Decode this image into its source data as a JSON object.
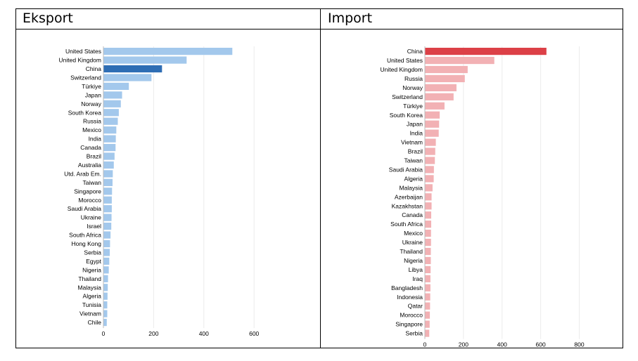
{
  "headers": {
    "left": "Eksport",
    "right": "Import"
  },
  "chart_data": [
    {
      "type": "bar",
      "orientation": "horizontal",
      "title": "",
      "xlabel": "",
      "ylabel": "",
      "xlim": [
        0,
        600
      ],
      "xticks": [
        0,
        200,
        400,
        600
      ],
      "grid": true,
      "colors": {
        "default": "#a3c8ec",
        "highlight": "#2e6db4"
      },
      "highlight": "China",
      "categories": [
        "United States",
        "United Kingdom",
        "China",
        "Switzerland",
        "Türkiye",
        "Japan",
        "Norway",
        "South Korea",
        "Russia",
        "Mexico",
        "India",
        "Canada",
        "Brazil",
        "Australia",
        "Utd. Arab Em.",
        "Taiwan",
        "Singapore",
        "Morocco",
        "Saudi Arabia",
        "Ukraine",
        "Israel",
        "South Africa",
        "Hong Kong",
        "Serbia",
        "Egypt",
        "Nigeria",
        "Thailand",
        "Malaysia",
        "Algeria",
        "Tunisia",
        "Vietnam",
        "Chile"
      ],
      "values": [
        512,
        330,
        232,
        190,
        100,
        73,
        68,
        60,
        56,
        50,
        48,
        47,
        43,
        40,
        36,
        35,
        33,
        32,
        32,
        31,
        30,
        27,
        25,
        24,
        22,
        20,
        17,
        16,
        15,
        14,
        14,
        12
      ]
    },
    {
      "type": "bar",
      "orientation": "horizontal",
      "title": "",
      "xlabel": "",
      "ylabel": "",
      "xlim": [
        0,
        800
      ],
      "xticks": [
        0,
        200,
        400,
        600,
        800
      ],
      "grid": true,
      "colors": {
        "default": "#f2b1b4",
        "highlight": "#dc4047"
      },
      "highlight": "China",
      "categories": [
        "China",
        "United States",
        "United Kingdom",
        "Russia",
        "Norway",
        "Switzerland",
        "Türkiye",
        "South Korea",
        "Japan",
        "India",
        "Vietnam",
        "Brazil",
        "Taiwan",
        "Saudi Arabia",
        "Algeria",
        "Malaysia",
        "Azerbaijan",
        "Kazakhstan",
        "Canada",
        "South Africa",
        "Mexico",
        "Ukraine",
        "Thailand",
        "Nigeria",
        "Libya",
        "Iraq",
        "Bangladesh",
        "Indonesia",
        "Qatar",
        "Morocco",
        "Singapore",
        "Serbia"
      ],
      "values": [
        628,
        358,
        220,
        205,
        162,
        147,
        100,
        75,
        72,
        70,
        55,
        52,
        50,
        45,
        44,
        38,
        33,
        33,
        31,
        31,
        30,
        30,
        29,
        29,
        28,
        27,
        27,
        26,
        25,
        24,
        23,
        21
      ]
    }
  ]
}
